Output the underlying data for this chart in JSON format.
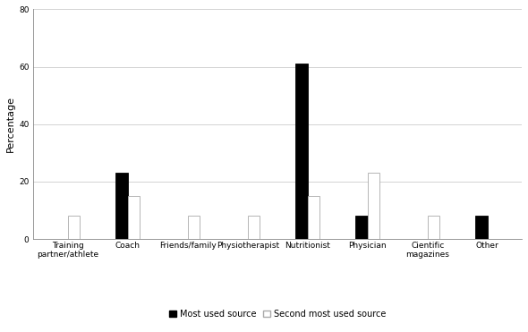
{
  "categories": [
    "Training\npartner/athlete",
    "Coach",
    "Friends/family",
    "Physiotherapist",
    "Nutritionist",
    "Physician",
    "Cientific\nmagazines",
    "Other"
  ],
  "most_used": [
    0,
    23,
    0,
    0,
    61,
    8,
    0,
    8
  ],
  "second_most_used": [
    8,
    15,
    8,
    8,
    15,
    23,
    8,
    0
  ],
  "most_used_color": "#000000",
  "second_most_used_color": "#ffffff",
  "second_most_used_edgecolor": "#aaaaaa",
  "ylabel": "Percentage",
  "ylim": [
    0,
    80
  ],
  "yticks": [
    0,
    20,
    40,
    60,
    80
  ],
  "legend_labels": [
    "Most used source",
    "Second most used source"
  ],
  "bar_width": 0.2,
  "background_color": "#ffffff",
  "grid_color": "#cccccc",
  "axis_fontsize": 8,
  "tick_fontsize": 6.5,
  "legend_fontsize": 7
}
